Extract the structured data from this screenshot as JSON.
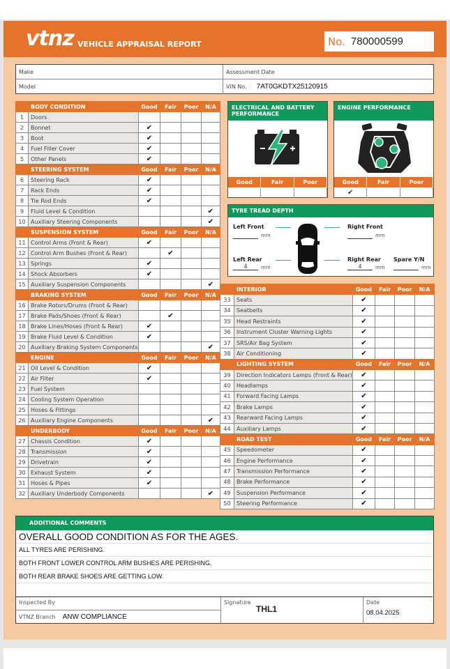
{
  "header": {
    "logo": "vtnz",
    "title": "VEHICLE APPRAISAL REPORT",
    "number_label": "No.",
    "number": "780000599"
  },
  "info": {
    "make_label": "Make",
    "make": "",
    "model_label": "Model",
    "model": "",
    "date_label": "Assessment Date",
    "date": "",
    "vin_label": "VIN No.",
    "vin": "7AT0GKDTX25120915"
  },
  "rating_columns": [
    "Good",
    "Fair",
    "Poor",
    "N/A"
  ],
  "left_sections": [
    {
      "title": "BODY CONDITION",
      "items": [
        {
          "n": "1",
          "name": "Doors",
          "r": ""
        },
        {
          "n": "2",
          "name": "Bonnet",
          "r": "Good"
        },
        {
          "n": "3",
          "name": "Boot",
          "r": "Good"
        },
        {
          "n": "4",
          "name": "Fuel Filler Cover",
          "r": "Good"
        },
        {
          "n": "5",
          "name": "Other Panels",
          "r": "Good"
        }
      ]
    },
    {
      "title": "STEERING SYSTEM",
      "items": [
        {
          "n": "6",
          "name": "Steering Rack",
          "r": "Good"
        },
        {
          "n": "7",
          "name": "Rack Ends",
          "r": "Good"
        },
        {
          "n": "8",
          "name": "Tie Rod Ends",
          "r": "Good"
        },
        {
          "n": "9",
          "name": "Fluid Level & Condition",
          "r": "N/A"
        },
        {
          "n": "10",
          "name": "Auxiliary Steering Components",
          "r": "N/A"
        }
      ]
    },
    {
      "title": "SUSPENSION SYSTEM",
      "items": [
        {
          "n": "11",
          "name": "Control Arms (Front & Rear)",
          "r": "Good"
        },
        {
          "n": "12",
          "name": "Control Arm Bushes (Front & Rear)",
          "r": "Fair"
        },
        {
          "n": "13",
          "name": "Springs",
          "r": "Good"
        },
        {
          "n": "14",
          "name": "Shock Absorbers",
          "r": "Good"
        },
        {
          "n": "15",
          "name": "Auxiliary Suspension Components",
          "r": "N/A"
        }
      ]
    },
    {
      "title": "BRAKING SYSTEM",
      "items": [
        {
          "n": "16",
          "name": "Brake Rotors/Drums (Front & Rear)",
          "r": ""
        },
        {
          "n": "17",
          "name": "Brake Pads/Shoes (Front & Rear)",
          "r": "Fair"
        },
        {
          "n": "18",
          "name": "Brake Lines/Hoses (Front & Rear)",
          "r": "Good"
        },
        {
          "n": "19",
          "name": "Brake Fluid Level & Condition",
          "r": "Good"
        },
        {
          "n": "20",
          "name": "Auxiliary Braking System Components",
          "r": "N/A"
        }
      ]
    },
    {
      "title": "ENGINE",
      "items": [
        {
          "n": "21",
          "name": "Oil Level & Condition",
          "r": "Good"
        },
        {
          "n": "22",
          "name": "Air Filter",
          "r": "Good"
        },
        {
          "n": "23",
          "name": "Fuel System",
          "r": ""
        },
        {
          "n": "24",
          "name": "Cooling System Operation",
          "r": ""
        },
        {
          "n": "25",
          "name": "Hoses & Fittings",
          "r": ""
        },
        {
          "n": "26",
          "name": "Auxiliary Engine Components",
          "r": "N/A"
        }
      ]
    },
    {
      "title": "UNDERBODY",
      "items": [
        {
          "n": "27",
          "name": "Chassis Condition",
          "r": "Good"
        },
        {
          "n": "28",
          "name": "Transmission",
          "r": "Good"
        },
        {
          "n": "29",
          "name": "Drivetrain",
          "r": "Good"
        },
        {
          "n": "30",
          "name": "Exhaust System",
          "r": "Good"
        },
        {
          "n": "31",
          "name": "Hoses & Pipes",
          "r": "Good"
        },
        {
          "n": "32",
          "name": "Auxiliary Underbody Components",
          "r": "N/A"
        }
      ]
    }
  ],
  "right_sections": [
    {
      "title": "INTERIOR",
      "items": [
        {
          "n": "33",
          "name": "Seats",
          "r": "Good"
        },
        {
          "n": "34",
          "name": "Seatbelts",
          "r": "Good"
        },
        {
          "n": "35",
          "name": "Head Restraints",
          "r": "Good"
        },
        {
          "n": "36",
          "name": "Instrument Cluster Warning Lights",
          "r": "Good"
        },
        {
          "n": "37",
          "name": "SRS/Air Bag System",
          "r": "Good"
        },
        {
          "n": "38",
          "name": "Air Conditioning",
          "r": "Good"
        }
      ]
    },
    {
      "title": "LIGHTING SYSTEM",
      "items": [
        {
          "n": "39",
          "name": "Direction Indicators Lamps (Front & Rear)",
          "r": "Good"
        },
        {
          "n": "40",
          "name": "Headlamps",
          "r": "Good"
        },
        {
          "n": "41",
          "name": "Forward Facing Lamps",
          "r": "Good"
        },
        {
          "n": "42",
          "name": "Brake Lamps",
          "r": "Good"
        },
        {
          "n": "43",
          "name": "Rearward Facing Lamps",
          "r": "Good"
        },
        {
          "n": "44",
          "name": "Auxiliary Lamps",
          "r": "Good"
        }
      ]
    },
    {
      "title": "ROAD TEST",
      "items": [
        {
          "n": "45",
          "name": "Speedometer",
          "r": "Good"
        },
        {
          "n": "46",
          "name": "Engine Performance",
          "r": "Good"
        },
        {
          "n": "47",
          "name": "Transmission Performance",
          "r": "Good"
        },
        {
          "n": "48",
          "name": "Brake Performance",
          "r": "Good"
        },
        {
          "n": "49",
          "name": "Suspension Performance",
          "r": "Good"
        },
        {
          "n": "50",
          "name": "Steering Performance",
          "r": "Good"
        }
      ]
    }
  ],
  "check_mark": "✔",
  "electrical": {
    "title": "ELECTRICAL AND BATTERY PERFORMANCE",
    "icon": "battery-icon",
    "cols": [
      "Good",
      "Fair",
      "Poor"
    ],
    "values": [
      "",
      "",
      ""
    ]
  },
  "engine": {
    "title": "ENGINE PERFORMANCE",
    "icon": "engine-icon",
    "cols": [
      "Good",
      "Fair",
      "Poor"
    ],
    "values": [
      "✔",
      "",
      ""
    ]
  },
  "tyre": {
    "title": "TYRE TREAD DEPTH",
    "unit": "mm",
    "left_front_label": "Left Front",
    "left_front": "",
    "right_front_label": "Right Front",
    "right_front": "",
    "left_rear_label": "Left Rear",
    "left_rear": "4",
    "right_rear_label": "Right Rear",
    "right_rear": "4",
    "spare_label": "Spare Y/N",
    "spare": ""
  },
  "comments": {
    "title": "ADDITIONAL COMMENTS",
    "lines": [
      "OVERALL GOOD CONDITION AS FOR THE AGES.",
      "ALL TYRES ARE PERISHING.",
      "BOTH FRONT LOWER CONTROL ARM BUSHES ARE PERISHING.",
      "BOTH REAR BRAKE SHOES ARE GETTING LOW.",
      ""
    ]
  },
  "footer": {
    "inspected_label": "Inspected By",
    "inspected": "",
    "branch_label": "VTNZ Branch",
    "branch": "ANW COMPLIANCE",
    "signature_label": "Signature",
    "signature": "THL1",
    "date_label": "Date",
    "date": "08.04.2025"
  },
  "colors": {
    "orange": "#e5732a",
    "green": "#0f9a5c",
    "peach": "#f7c9a0"
  }
}
